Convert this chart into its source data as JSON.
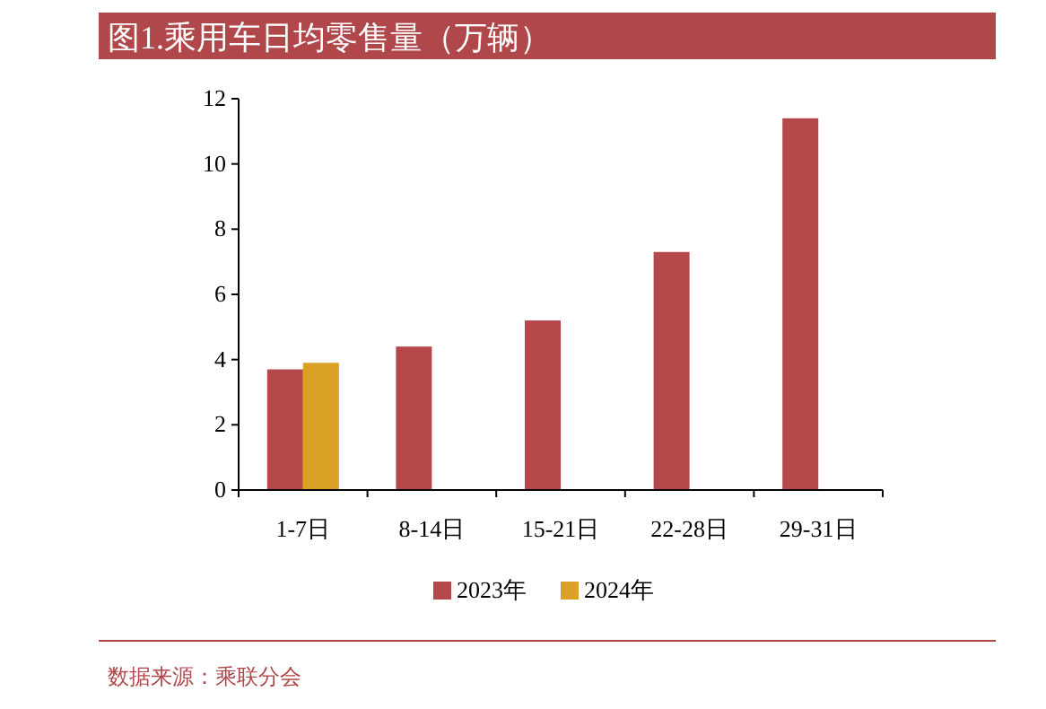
{
  "chart_data": {
    "type": "bar",
    "title": "图1.乘用车日均零售量（万辆）",
    "categories": [
      "1-7日",
      "8-14日",
      "15-21日",
      "22-28日",
      "29-31日"
    ],
    "series": [
      {
        "name": "2023年",
        "color": "#b5484a",
        "values": [
          3.7,
          4.4,
          5.2,
          7.3,
          11.4
        ]
      },
      {
        "name": "2024年",
        "color": "#dba026",
        "values": [
          3.9,
          null,
          null,
          null,
          null
        ]
      }
    ],
    "ylim": [
      0,
      12
    ],
    "yticks": [
      0,
      2,
      4,
      6,
      8,
      10,
      12
    ],
    "grid": false,
    "legend": "bottom",
    "annotations": [
      "数据来源：乘联分会"
    ]
  }
}
